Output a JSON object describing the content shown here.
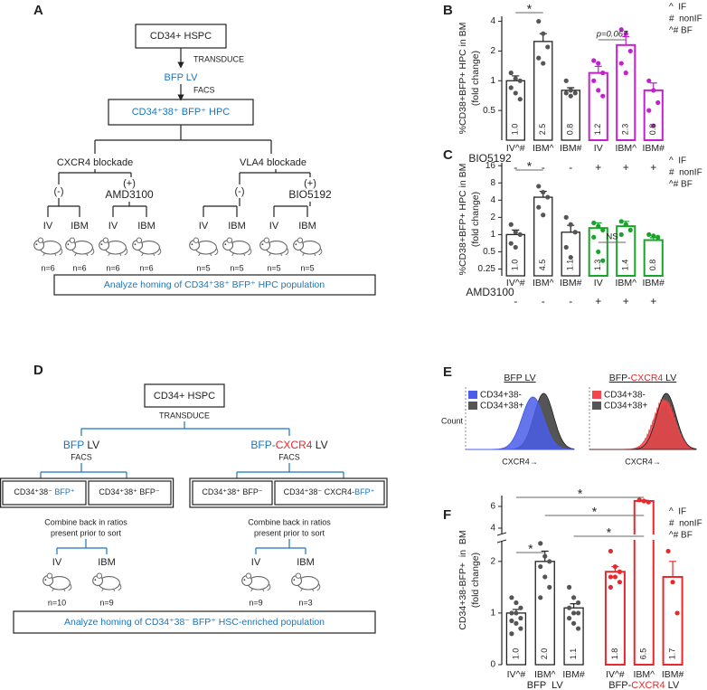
{
  "panel_labels": [
    "A",
    "B",
    "C",
    "D",
    "E",
    "F"
  ],
  "diagram_a": {
    "source": "CD34+ HSPC",
    "step1": "TRANSDUCE",
    "vector": "BFP LV",
    "step2": "FACS",
    "population": "CD34⁺38⁺ BFP⁺ HPC",
    "arms": [
      {
        "name": "CXCR4 blockade",
        "control": "(-)",
        "treated": "(+)",
        "drug": "AMD3100",
        "drug_color": "#1aa32a",
        "routes": [
          "IV",
          "IBM",
          "IV",
          "IBM"
        ],
        "n": [
          "n=6",
          "n=6",
          "n=6",
          "n=6"
        ]
      },
      {
        "name": "VLA4 blockade",
        "control": "(-)",
        "treated": "(+)",
        "drug": "BIO5192",
        "drug_color": "#c51fd0",
        "routes": [
          "IV",
          "IBM",
          "IV",
          "IBM"
        ],
        "n": [
          "n=5",
          "n=5",
          "n=5",
          "n=5"
        ]
      }
    ],
    "footer": "Analyze homing of CD34⁺38⁺ BFP⁺ HPC population"
  },
  "diagram_d": {
    "source": "CD34+ HSPC",
    "step1": "TRANSDUCE",
    "arms": [
      {
        "vector": [
          {
            "text": "BFP",
            "color": "#1a75bc"
          },
          {
            "text": " LV"
          }
        ],
        "step2": "FACS",
        "sorts": [
          [
            {
              "text": "CD34⁺38⁻ "
            },
            {
              "text": "BFP⁺",
              "color": "#1a75bc"
            }
          ],
          [
            {
              "text": "CD34⁺38⁺ BFP⁻"
            }
          ]
        ],
        "combine": [
          "Combine back in ratios",
          "present prior to sort"
        ],
        "routes": [
          "IV",
          "IBM"
        ],
        "route_color": "#222222",
        "n": [
          "n=10",
          "n=9"
        ]
      },
      {
        "vector": [
          {
            "text": "BFP-",
            "color": "#1a75bc"
          },
          {
            "text": "CXCR4",
            "color": "#e8282b"
          },
          {
            "text": " LV"
          }
        ],
        "step2": "FACS",
        "sorts": [
          [
            {
              "text": "CD34⁺38⁺ BFP⁻"
            }
          ],
          [
            {
              "text": "CD34⁺38⁻ CXCR4-"
            },
            {
              "text": "BFP⁺",
              "color": "#1a75bc"
            }
          ]
        ],
        "combine": [
          "Combine back in ratios",
          "present prior to sort"
        ],
        "routes": [
          "IV",
          "IBM"
        ],
        "route_color": "#e8282b",
        "n": [
          "n=9",
          "n=3"
        ]
      }
    ],
    "footer": "Analyze homing of CD34⁺38⁻ BFP⁺ HSC-enriched population"
  },
  "panel_e": {
    "ylabel": "Count",
    "plots": [
      {
        "title": [
          {
            "text": "BFP LV"
          }
        ],
        "legend": [
          {
            "text": "CD34+38-",
            "color": "#4a5de8"
          },
          {
            "text": "CD34+38+",
            "color": "#555555"
          }
        ],
        "xlabel": "CXCR4→"
      },
      {
        "title": [
          {
            "text": "BFP-"
          },
          {
            "text": "CXCR4",
            "color": "#e8282b"
          },
          {
            "text": " LV"
          }
        ],
        "legend": [
          {
            "text": "CD34+38-",
            "color": "#f0474a"
          },
          {
            "text": "CD34+38+",
            "color": "#555555"
          }
        ],
        "xlabel": "CXCR4→"
      }
    ]
  },
  "chart_data": [
    {
      "type": "bar",
      "ylabel": [
        "%CD38+BFP+ HPC in BM",
        "(fold change)"
      ],
      "categories": [
        "IV^#",
        "IBM^",
        "IBM#",
        "IV",
        "IBM^",
        "IBM#"
      ],
      "values": [
        1.0,
        2.5,
        0.8,
        1.2,
        2.3,
        0.8
      ],
      "value_labels": [
        "1.0",
        "2.5",
        "0.8",
        "1.2",
        "2.3",
        "0.8"
      ],
      "errors": [
        0.12,
        0.5,
        0.05,
        0.2,
        0.5,
        0.15
      ],
      "points": [
        [
          1.2,
          1.05,
          1.0,
          0.85,
          0.75,
          0.65
        ],
        [
          4.0,
          3.0,
          2.2,
          1.7,
          1.5
        ],
        [
          1.0,
          0.8,
          0.75,
          0.75,
          0.7
        ],
        [
          1.6,
          1.5,
          1.2,
          1.0,
          0.8,
          0.7
        ],
        [
          3.3,
          3.0,
          2.0,
          1.5,
          1.2
        ],
        [
          1.0,
          0.8,
          0.6,
          0.5,
          0.35
        ]
      ],
      "colors": [
        "#222222",
        "#222222",
        "#222222",
        "#c51fd0",
        "#c51fd0",
        "#c51fd0"
      ],
      "ylog": true,
      "ylim": [
        0.25,
        4.5
      ],
      "yticks": [
        0.5,
        1,
        2,
        4
      ],
      "treatment": {
        "name": "BIO5192",
        "color": "#c51fd0",
        "signs": [
          "-",
          "-",
          "-",
          "+",
          "+",
          "+"
        ]
      },
      "annotations": [
        {
          "label": "*",
          "from": 0,
          "to": 1
        },
        {
          "label": "p=0.067",
          "from": 3,
          "to": 4,
          "italic": true
        }
      ],
      "notes": [
        "^  IF",
        "#  nonIF",
        "^# BF"
      ]
    },
    {
      "type": "bar",
      "ylabel": [
        "%CD38+BFP+ HPC in BM",
        "(fold change)"
      ],
      "categories": [
        "IV^#",
        "IBM^",
        "IBM#",
        "IV",
        "IBM^",
        "IBM#"
      ],
      "values": [
        1.0,
        4.5,
        1.1,
        1.3,
        1.4,
        0.8
      ],
      "value_labels": [
        "1.0",
        "4.5",
        "1.1",
        "1.3",
        "1.4",
        "0.8"
      ],
      "errors": [
        0.2,
        1.2,
        0.35,
        0.3,
        0.3,
        0.08
      ],
      "points": [
        [
          1.5,
          1.1,
          1.0,
          0.7,
          0.6
        ],
        [
          7,
          5.5,
          4.5,
          3,
          2.2
        ],
        [
          2,
          1.5,
          1.1,
          0.6,
          0.4
        ],
        [
          1.6,
          1.4,
          1.2,
          0.9,
          0.5,
          0.35
        ],
        [
          1.7,
          1.5,
          1.2,
          1.0
        ],
        [
          1.0,
          0.95,
          0.9
        ]
      ],
      "colors": [
        "#222222",
        "#222222",
        "#222222",
        "#1aa32a",
        "#1aa32a",
        "#1aa32a"
      ],
      "ylog": true,
      "ylim": [
        0.19,
        18
      ],
      "yticks": [
        0.25,
        0.5,
        1,
        2,
        4,
        8,
        16
      ],
      "treatment": {
        "name": "AMD3100",
        "color": "#1aa32a",
        "signs": [
          "-",
          "-",
          "-",
          "+",
          "+",
          "+"
        ]
      },
      "annotations": [
        {
          "label": "*",
          "from": 0,
          "to": 1
        },
        {
          "label": "NS",
          "from": 3,
          "to": 4
        }
      ],
      "notes": [
        "^  IF",
        "#  nonIF",
        "^# BF"
      ]
    },
    {
      "type": "bar",
      "ylabel": [
        "CD34+38-BFP+  in  BM",
        "(fold change)"
      ],
      "categories": [
        "IV^#",
        "IBM^",
        "IBM#",
        "IV^#",
        "IBM^",
        "IBM#"
      ],
      "values": [
        1.0,
        2.0,
        1.1,
        1.8,
        6.5,
        1.7
      ],
      "value_labels": [
        "1.0",
        "2.0",
        "1.1",
        "1.8",
        "6.5",
        "1.7"
      ],
      "errors": [
        0.07,
        0.2,
        0.08,
        0.1,
        0.08,
        0.3
      ],
      "points": [
        [
          1.3,
          1.2,
          1.1,
          1.0,
          1.0,
          0.9,
          0.85,
          0.8,
          0.7,
          0.6
        ],
        [
          2.35,
          2.1,
          2.0,
          1.9,
          1.7,
          1.5,
          1.3
        ],
        [
          1.5,
          1.3,
          1.2,
          1.1,
          1.0,
          1.0,
          0.9,
          0.8,
          0.7
        ],
        [
          2.2,
          1.9,
          1.8,
          1.7,
          1.7,
          1.6,
          1.5
        ],
        [
          6.6,
          6.5,
          6.4
        ],
        [
          2.2,
          1.6,
          1.0
        ]
      ],
      "colors": [
        "#222222",
        "#222222",
        "#222222",
        "#e8282b",
        "#e8282b",
        "#e8282b"
      ],
      "ylim": [
        0,
        2.4
      ],
      "yticks": [
        0,
        1,
        2
      ],
      "ylim_upper": [
        3.5,
        7
      ],
      "yticks_upper": [
        4,
        6
      ],
      "groups": [
        {
          "label": [
            {
              "text": "BFP  LV"
            }
          ],
          "from": 0,
          "to": 2
        },
        {
          "label": [
            {
              "text": "BFP-"
            },
            {
              "text": "CXCR4",
              "color": "#e8282b"
            },
            {
              "text": " LV"
            }
          ],
          "from": 3,
          "to": 5
        }
      ],
      "annotations": [
        {
          "label": "*",
          "from": 0,
          "to": 1
        },
        {
          "label": "*",
          "from": 2,
          "to": 4
        },
        {
          "label": "*",
          "from": 1,
          "to": 4
        },
        {
          "label": "*",
          "from": 0,
          "to": 4
        }
      ],
      "notes": [
        "^  IF",
        "#  nonIF",
        "^# BF"
      ]
    }
  ]
}
